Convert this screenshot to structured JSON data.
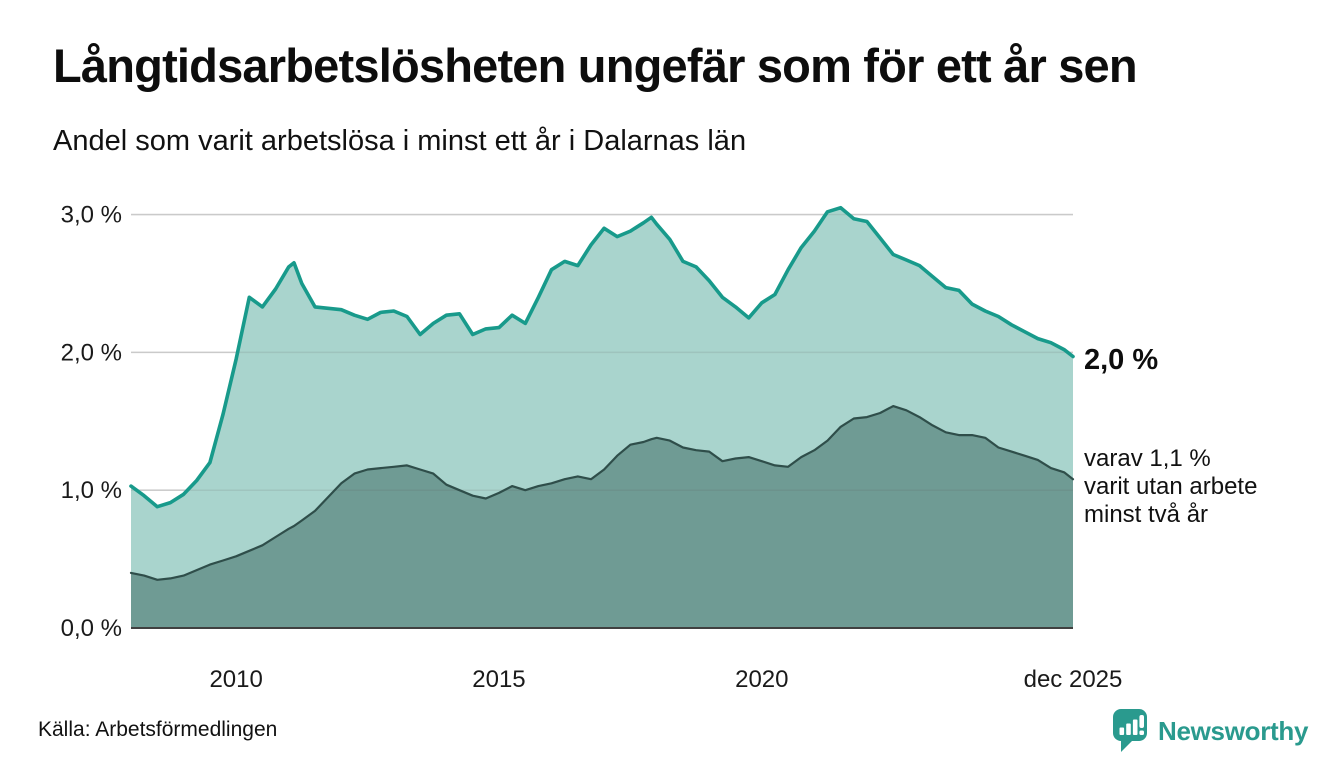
{
  "header": {
    "title": "Långtidsarbetslösheten ungefär som för ett år sen",
    "subtitle": "Andel som varit arbetslösa i minst ett år i Dalarnas län"
  },
  "chart_data": {
    "type": "area",
    "title": "Långtidsarbetslösheten ungefär som för ett år sen",
    "subtitle": "Andel som varit arbetslösa i minst ett år i Dalarnas län",
    "xlabel": "",
    "ylabel": "",
    "xlim": [
      2008.0,
      2025.92
    ],
    "ylim": [
      0,
      3.2
    ],
    "grid": "horizontal",
    "legend_position": "end-of-line-labels",
    "yticks": [
      {
        "value": 3.0,
        "label": "3,0 %"
      },
      {
        "value": 2.0,
        "label": "2,0 %"
      },
      {
        "value": 1.0,
        "label": "1,0 %"
      },
      {
        "value": 0.0,
        "label": "0,0 %"
      }
    ],
    "xticks": [
      {
        "value": 2010.0,
        "label": "2010"
      },
      {
        "value": 2015.0,
        "label": "2015"
      },
      {
        "value": 2020.0,
        "label": "2020"
      },
      {
        "value": 2025.92,
        "label": "dec 2025"
      }
    ],
    "x": [
      2008.0,
      2008.25,
      2008.5,
      2008.75,
      2009.0,
      2009.25,
      2009.5,
      2009.75,
      2010.0,
      2010.25,
      2010.5,
      2010.75,
      2011.0,
      2011.1,
      2011.25,
      2011.5,
      2011.75,
      2012.0,
      2012.25,
      2012.5,
      2012.75,
      2013.0,
      2013.25,
      2013.5,
      2013.75,
      2014.0,
      2014.25,
      2014.5,
      2014.75,
      2015.0,
      2015.25,
      2015.5,
      2015.75,
      2016.0,
      2016.25,
      2016.5,
      2016.75,
      2017.0,
      2017.25,
      2017.5,
      2017.75,
      2017.9,
      2018.0,
      2018.25,
      2018.5,
      2018.75,
      2019.0,
      2019.25,
      2019.5,
      2019.75,
      2020.0,
      2020.25,
      2020.5,
      2020.75,
      2021.0,
      2021.25,
      2021.5,
      2021.75,
      2022.0,
      2022.25,
      2022.5,
      2022.75,
      2023.0,
      2023.25,
      2023.5,
      2023.75,
      2024.0,
      2024.25,
      2024.5,
      2024.75,
      2025.0,
      2025.25,
      2025.5,
      2025.75,
      2025.92
    ],
    "series": [
      {
        "name": "Arbetslösa minst ett år",
        "line_color": "#189a8b",
        "fill_color": "#a9d4cd",
        "end_value": 2.0,
        "end_label": "2,0 %",
        "values": [
          1.03,
          0.96,
          0.88,
          0.91,
          0.97,
          1.07,
          1.2,
          1.55,
          1.95,
          2.4,
          2.33,
          2.46,
          2.62,
          2.65,
          2.5,
          2.33,
          2.32,
          2.31,
          2.27,
          2.24,
          2.29,
          2.3,
          2.26,
          2.13,
          2.21,
          2.27,
          2.28,
          2.13,
          2.17,
          2.18,
          2.27,
          2.21,
          2.4,
          2.6,
          2.66,
          2.63,
          2.78,
          2.9,
          2.84,
          2.88,
          2.94,
          2.98,
          2.93,
          2.82,
          2.66,
          2.62,
          2.52,
          2.4,
          2.33,
          2.25,
          2.36,
          2.42,
          2.6,
          2.76,
          2.88,
          3.02,
          3.05,
          2.97,
          2.95,
          2.83,
          2.71,
          2.67,
          2.63,
          2.55,
          2.47,
          2.45,
          2.35,
          2.3,
          2.26,
          2.2,
          2.15,
          2.1,
          2.07,
          2.02,
          1.97
        ]
      },
      {
        "name": "Arbetslösa minst två år",
        "line_color": "#2f4e4a",
        "fill_color": "#6f9b94",
        "end_value": 1.1,
        "end_label": "varav 1,1 % varit utan arbete minst två år",
        "values": [
          0.4,
          0.38,
          0.35,
          0.36,
          0.38,
          0.42,
          0.46,
          0.49,
          0.52,
          0.56,
          0.6,
          0.66,
          0.72,
          0.74,
          0.78,
          0.85,
          0.95,
          1.05,
          1.12,
          1.15,
          1.16,
          1.17,
          1.18,
          1.15,
          1.12,
          1.04,
          1.0,
          0.96,
          0.94,
          0.98,
          1.03,
          1.0,
          1.03,
          1.05,
          1.08,
          1.1,
          1.08,
          1.15,
          1.25,
          1.33,
          1.35,
          1.37,
          1.38,
          1.36,
          1.31,
          1.29,
          1.28,
          1.21,
          1.23,
          1.24,
          1.21,
          1.18,
          1.17,
          1.24,
          1.29,
          1.36,
          1.46,
          1.52,
          1.53,
          1.56,
          1.61,
          1.58,
          1.53,
          1.47,
          1.42,
          1.4,
          1.4,
          1.38,
          1.31,
          1.28,
          1.25,
          1.22,
          1.16,
          1.13,
          1.08
        ]
      }
    ]
  },
  "annotations": {
    "end_value_total": "2,0 %",
    "end_note_lines": [
      "varav 1,1 %",
      "varit utan arbete",
      "minst två år"
    ]
  },
  "footer": {
    "source": "Källa: Arbetsförmedlingen",
    "brand": "Newsworthy",
    "brand_color": "#2a9a8e"
  }
}
